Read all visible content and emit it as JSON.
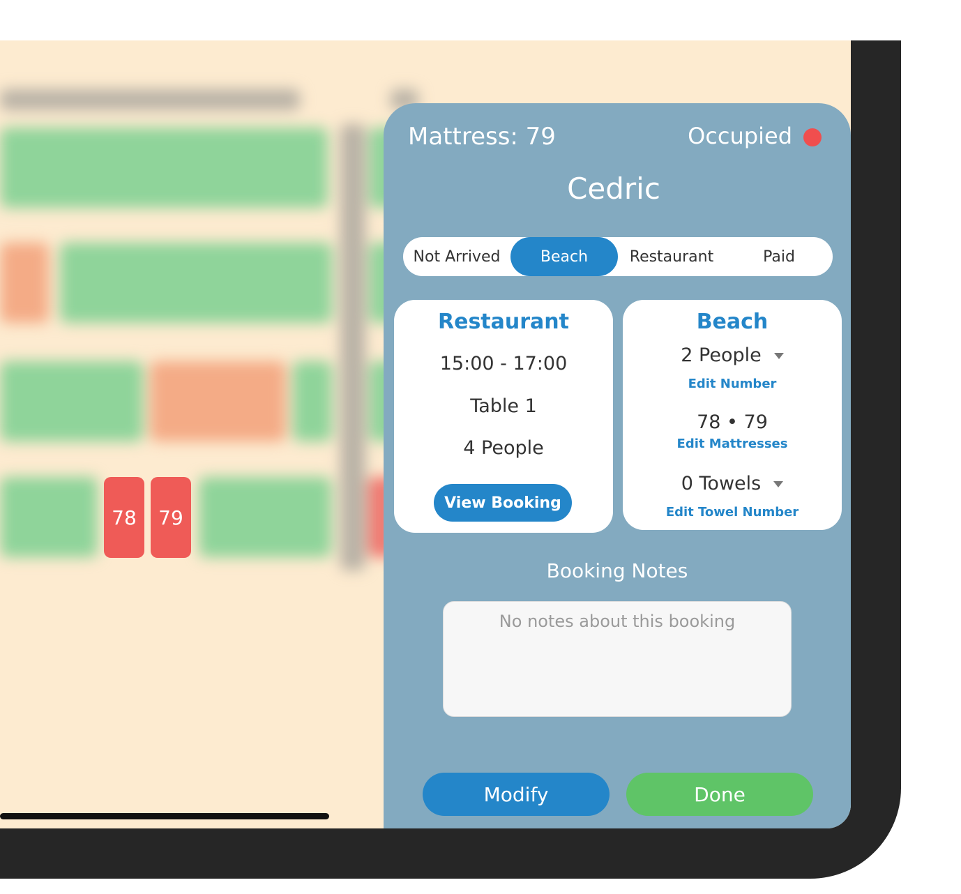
{
  "map": {
    "chips": [
      "78",
      "79"
    ]
  },
  "panel": {
    "mattress_title": "Mattress: 79",
    "status": "Occupied",
    "guest_name": "Cedric",
    "tabs": [
      {
        "label": "Not Arrived",
        "active": false
      },
      {
        "label": "Beach",
        "active": true
      },
      {
        "label": "Restaurant",
        "active": false
      },
      {
        "label": "Paid",
        "active": false
      }
    ],
    "restaurant": {
      "title": "Restaurant",
      "time": "15:00 - 17:00",
      "table": "Table 1",
      "people": "4 People",
      "view_booking": "View Booking"
    },
    "beach": {
      "title": "Beach",
      "people": "2 People",
      "edit_number": "Edit Number",
      "mattresses": "78 • 79",
      "edit_mattresses": "Edit Mattresses",
      "towels": "0 Towels",
      "edit_towels": "Edit Towel Number"
    },
    "notes": {
      "label": "Booking Notes",
      "placeholder": "No notes about this booking"
    },
    "modify_label": "Modify",
    "done_label": "Done"
  },
  "colors": {
    "accent_blue": "#2486c9",
    "done_green": "#5fc467",
    "occupied_red": "#f04e4e",
    "panel_bg": "#83aac0"
  }
}
